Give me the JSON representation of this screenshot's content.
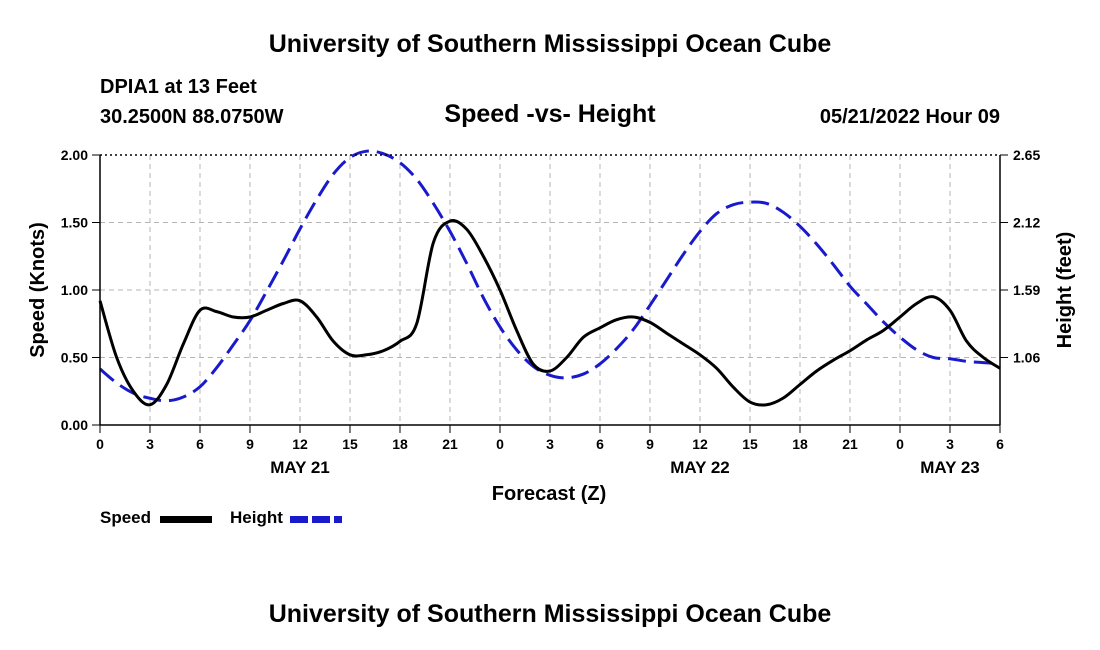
{
  "page": {
    "title_top": "University of Southern Mississippi Ocean Cube",
    "title_bottom": "University of Southern Mississippi Ocean Cube",
    "station": "DPIA1 at 13 Feet",
    "coords": "30.2500N  88.0750W",
    "subtitle": "Speed -vs- Height",
    "datetime": "05/21/2022 Hour 09"
  },
  "colors": {
    "speed": "#000000",
    "height": "#1a1acd",
    "grid": "#b4b4b4",
    "axis": "#000000"
  },
  "chart_data": {
    "type": "line",
    "title": "Speed -vs- Height",
    "xlabel": "Forecast (Z)",
    "ylabel": "Speed (Knots)",
    "y2label": "Height (feet)",
    "x_range_hours": [
      0,
      54
    ],
    "xtick_hours": [
      0,
      3,
      6,
      9,
      12,
      15,
      18,
      21,
      24,
      27,
      30,
      33,
      36,
      39,
      42,
      45,
      48,
      51,
      54
    ],
    "xtick_labels": [
      "0",
      "3",
      "6",
      "9",
      "12",
      "15",
      "18",
      "21",
      "0",
      "3",
      "6",
      "9",
      "12",
      "15",
      "18",
      "21",
      "0",
      "3",
      "6"
    ],
    "date_labels": [
      {
        "hour": 12,
        "label": "MAY 21"
      },
      {
        "hour": 36,
        "label": "MAY 22"
      },
      {
        "hour": 51,
        "label": "MAY 23"
      }
    ],
    "ylim": [
      0,
      2.0
    ],
    "ytick_values": [
      0,
      0.5,
      1.0,
      1.5,
      2.0
    ],
    "ytick_labels": [
      "0.00",
      "0.50",
      "1.00",
      "1.50",
      "2.00"
    ],
    "y2lim": [
      0.53,
      2.65
    ],
    "y2tick_values": [
      1.06,
      1.59,
      2.12,
      2.65
    ],
    "y2tick_labels": [
      "1.06",
      "1.59",
      "2.12",
      "2.65"
    ],
    "legend_location": "bottom-left",
    "series": [
      {
        "name": "Speed",
        "axis": "left",
        "style": "solid",
        "x": [
          0,
          1,
          2,
          3,
          4,
          5,
          6,
          7,
          8,
          9,
          10,
          11,
          12,
          13,
          14,
          15,
          16,
          17,
          18,
          19,
          20,
          21,
          22,
          23,
          24,
          25,
          26,
          27,
          28,
          29,
          30,
          31,
          32,
          33,
          34,
          35,
          36,
          37,
          38,
          39,
          40,
          41,
          42,
          43,
          44,
          45,
          46,
          47,
          48,
          49,
          50,
          51,
          52,
          53,
          54
        ],
        "values": [
          0.92,
          0.5,
          0.25,
          0.15,
          0.3,
          0.6,
          0.85,
          0.84,
          0.8,
          0.8,
          0.85,
          0.9,
          0.92,
          0.8,
          0.62,
          0.52,
          0.52,
          0.55,
          0.62,
          0.75,
          1.35,
          1.51,
          1.45,
          1.25,
          1.0,
          0.7,
          0.45,
          0.4,
          0.5,
          0.65,
          0.72,
          0.78,
          0.8,
          0.76,
          0.68,
          0.6,
          0.52,
          0.42,
          0.28,
          0.17,
          0.15,
          0.2,
          0.3,
          0.4,
          0.48,
          0.55,
          0.63,
          0.7,
          0.8,
          0.9,
          0.95,
          0.85,
          0.62,
          0.5,
          0.42
        ]
      },
      {
        "name": "Height",
        "axis": "right",
        "style": "dashed",
        "x": [
          0,
          1,
          2,
          3,
          4,
          5,
          6,
          7,
          8,
          9,
          10,
          11,
          12,
          13,
          14,
          15,
          16,
          17,
          18,
          19,
          20,
          21,
          22,
          23,
          24,
          25,
          26,
          27,
          28,
          29,
          30,
          31,
          32,
          33,
          34,
          35,
          36,
          37,
          38,
          39,
          40,
          41,
          42,
          43,
          44,
          45,
          46,
          47,
          48,
          49,
          50,
          51,
          52,
          53,
          54
        ],
        "values": [
          0.97,
          0.86,
          0.78,
          0.74,
          0.72,
          0.75,
          0.83,
          0.98,
          1.16,
          1.35,
          1.58,
          1.82,
          2.07,
          2.3,
          2.5,
          2.63,
          2.68,
          2.66,
          2.59,
          2.46,
          2.27,
          2.05,
          1.8,
          1.53,
          1.3,
          1.12,
          0.99,
          0.92,
          0.9,
          0.93,
          1.01,
          1.13,
          1.28,
          1.47,
          1.67,
          1.87,
          2.05,
          2.19,
          2.26,
          2.28,
          2.27,
          2.2,
          2.09,
          1.95,
          1.79,
          1.62,
          1.48,
          1.34,
          1.22,
          1.12,
          1.06,
          1.05,
          1.03,
          1.02,
          1.01
        ]
      }
    ]
  }
}
